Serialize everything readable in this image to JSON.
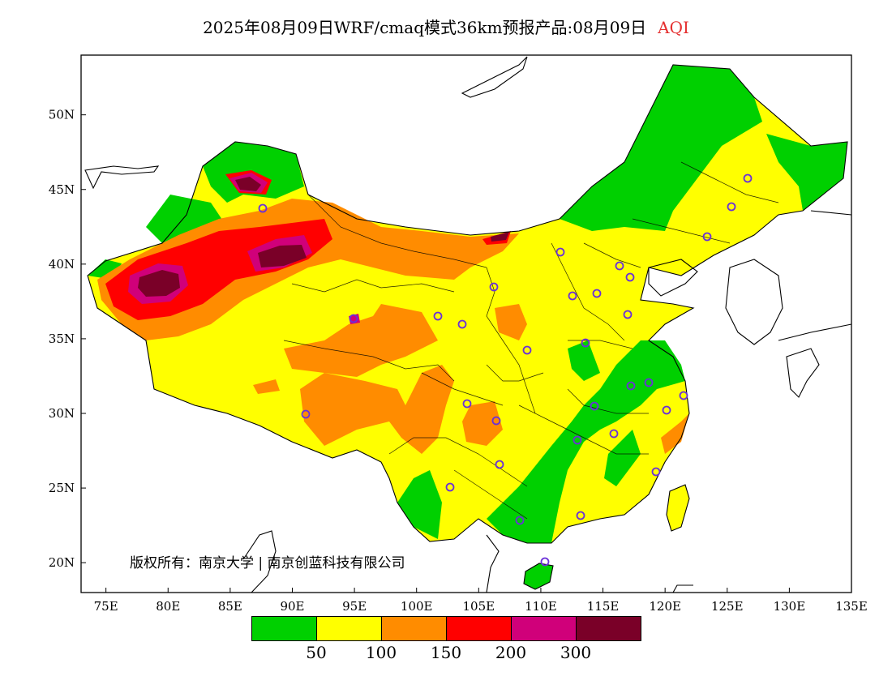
{
  "header": {
    "title": "2025年08月09日WRF/cmaq模式36km预报产品:08月09日",
    "product": "AQI",
    "product_color": "#e53030"
  },
  "map": {
    "lon_range": [
      73,
      135
    ],
    "lat_range": [
      18,
      54
    ],
    "lon_ticks": [
      "75E",
      "80E",
      "85E",
      "90E",
      "95E",
      "100E",
      "105E",
      "110E",
      "115E",
      "120E",
      "125E",
      "130E",
      "135E"
    ],
    "lat_ticks": [
      "20N",
      "25N",
      "30N",
      "35N",
      "40N",
      "45N",
      "50N"
    ]
  },
  "legend": {
    "colors": [
      "#00d000",
      "#ffff00",
      "#ff8c00",
      "#ff0000",
      "#d0007a",
      "#7a0028"
    ],
    "labels": [
      "50",
      "100",
      "150",
      "200",
      "300"
    ]
  },
  "copyright": "版权所有：南京大学 | 南京创蓝科技有限公司"
}
